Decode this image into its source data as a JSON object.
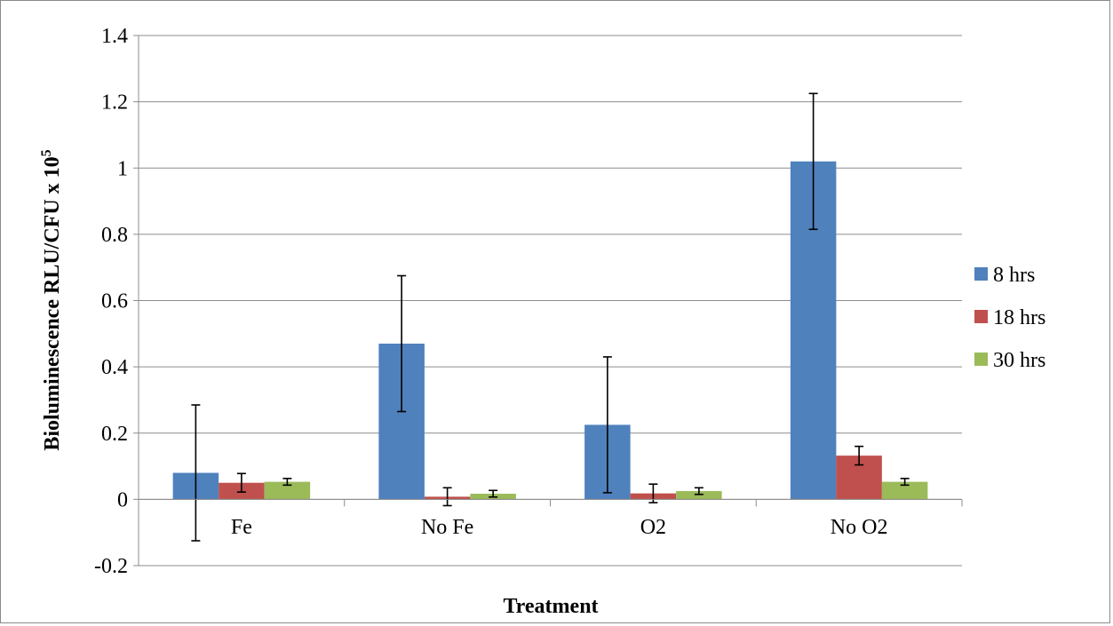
{
  "chart_data": {
    "type": "bar",
    "title": "",
    "xlabel": "Treatment",
    "ylabel": "Bioluminescence RLU/CFU x 10",
    "ylabel_superscript": "5",
    "categories": [
      "Fe",
      "No Fe",
      "O2",
      "No O2"
    ],
    "ylim": [
      -0.2,
      1.4
    ],
    "yticks": [
      -0.2,
      0,
      0.2,
      0.4,
      0.6,
      0.8,
      1,
      1.2,
      1.4
    ],
    "grid": true,
    "legend_position": "right",
    "series": [
      {
        "name": "8 hrs",
        "color": "#4f81bd",
        "values": [
          0.08,
          0.47,
          0.225,
          1.02
        ],
        "errors": [
          0.205,
          0.205,
          0.205,
          0.205
        ]
      },
      {
        "name": "18 hrs",
        "color": "#c0504d",
        "values": [
          0.05,
          0.008,
          0.018,
          0.132
        ],
        "errors": [
          0.028,
          0.027,
          0.028,
          0.028
        ]
      },
      {
        "name": "30 hrs",
        "color": "#9bbb59",
        "values": [
          0.053,
          0.017,
          0.025,
          0.053
        ],
        "errors": [
          0.01,
          0.01,
          0.01,
          0.01
        ]
      }
    ]
  }
}
